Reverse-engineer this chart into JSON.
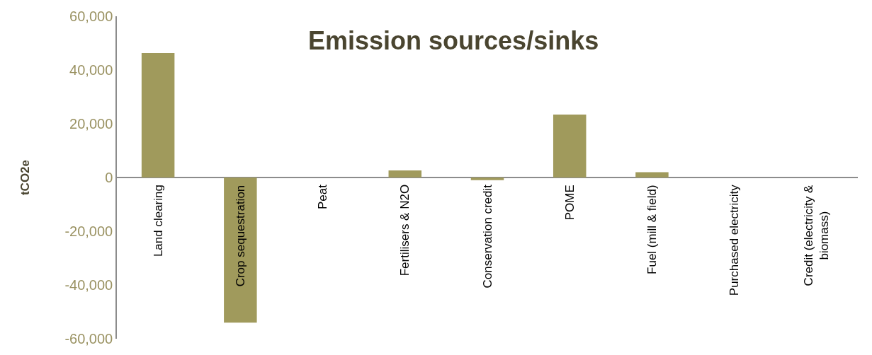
{
  "chart_data": {
    "type": "bar",
    "title": "Emission sources/sinks",
    "ylabel": "tCO2e",
    "categories": [
      "Land clearing",
      "Crop sequestration",
      "Peat",
      "Fertilisers & N2O",
      "Conservation credit",
      "POME",
      "Fuel (mill & field)",
      "Purchased electricity",
      "Credit (electricity &\nbiomass)"
    ],
    "values": [
      46300,
      -54000,
      0,
      2600,
      -1000,
      23400,
      2000,
      0,
      0
    ],
    "color": "#a09a5c",
    "ylim": [
      -60000,
      60000
    ],
    "yticks": [
      {
        "value": -60000,
        "label": "-60,000"
      },
      {
        "value": -40000,
        "label": "-40,000"
      },
      {
        "value": -20000,
        "label": "-20,000"
      },
      0,
      {
        "value": 20000,
        "label": "20,000"
      },
      {
        "value": 40000,
        "label": "40,000"
      },
      {
        "value": 60000,
        "label": "60,000"
      }
    ],
    "legend": false
  }
}
